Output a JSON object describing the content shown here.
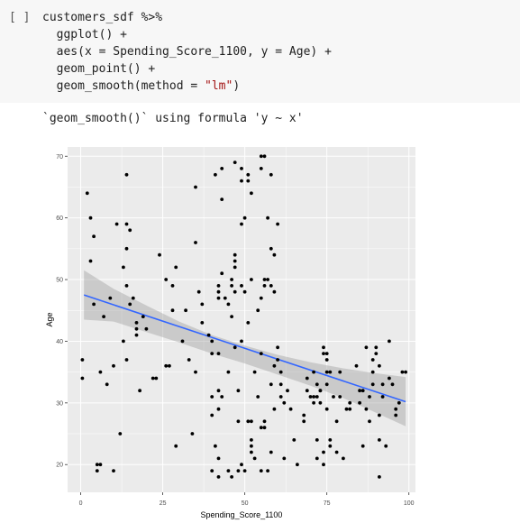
{
  "cell": {
    "run_indicator": "[ ]",
    "code_lines": [
      "customers_sdf %>%",
      "  ggplot() +",
      "  aes(x = Spending_Score_1100, y = Age) +",
      "  geom_point() +"
    ],
    "smooth_prefix": "  geom_smooth(method = ",
    "smooth_string": "\"lm\"",
    "smooth_suffix": ")"
  },
  "output": {
    "message": "`geom_smooth()` using formula 'y ~ x'"
  },
  "chart_data": {
    "type": "scatter",
    "xlabel": "Spending_Score_1100",
    "ylabel": "Age",
    "xlim": [
      -4,
      102
    ],
    "ylim": [
      15.5,
      71.5
    ],
    "xticks": [
      0,
      25,
      50,
      75,
      100
    ],
    "xtick_labels": [
      "0",
      "25",
      "50",
      "75",
      "100"
    ],
    "yticks": [
      20,
      30,
      40,
      50,
      60,
      70
    ],
    "ytick_labels": [
      "20",
      "30",
      "40",
      "50",
      "60",
      "70"
    ],
    "grid": true,
    "colors": {
      "panel": "#ebebeb",
      "grid": "#ffffff",
      "point": "#000000",
      "line": "#3366ff",
      "ribbon": "#999999"
    },
    "regression": {
      "x": [
        1,
        99
      ],
      "y": [
        47.5,
        30.2
      ]
    },
    "ribbon": {
      "x": [
        1,
        10,
        20,
        30,
        40,
        50,
        60,
        70,
        80,
        90,
        99
      ],
      "upper": [
        51.5,
        48.5,
        45.8,
        43.2,
        41.0,
        39.3,
        37.8,
        36.6,
        35.6,
        34.8,
        34.2
      ],
      "lower": [
        43.5,
        43.2,
        41.5,
        39.8,
        38.0,
        36.4,
        34.6,
        32.8,
        30.8,
        28.4,
        26.2
      ]
    },
    "points": [
      [
        0.5,
        37
      ],
      [
        0.5,
        34
      ],
      [
        2,
        64
      ],
      [
        3,
        60
      ],
      [
        3,
        53
      ],
      [
        4,
        46
      ],
      [
        4,
        57
      ],
      [
        5,
        20
      ],
      [
        5,
        19
      ],
      [
        6,
        20
      ],
      [
        6,
        35
      ],
      [
        7,
        44
      ],
      [
        8,
        33
      ],
      [
        9,
        47
      ],
      [
        10,
        19
      ],
      [
        10,
        36
      ],
      [
        11,
        59
      ],
      [
        12,
        25
      ],
      [
        13,
        52
      ],
      [
        13,
        40
      ],
      [
        14,
        55
      ],
      [
        14,
        59
      ],
      [
        14,
        49
      ],
      [
        14,
        37
      ],
      [
        14,
        67
      ],
      [
        15,
        58
      ],
      [
        15,
        46
      ],
      [
        16,
        47
      ],
      [
        17,
        41
      ],
      [
        17,
        43
      ],
      [
        17,
        42
      ],
      [
        18,
        32
      ],
      [
        19,
        44
      ],
      [
        20,
        42
      ],
      [
        22,
        34
      ],
      [
        23,
        34
      ],
      [
        24,
        54
      ],
      [
        26,
        36
      ],
      [
        26,
        50
      ],
      [
        27,
        36
      ],
      [
        28,
        45
      ],
      [
        28,
        49
      ],
      [
        29,
        52
      ],
      [
        29,
        23
      ],
      [
        31,
        40
      ],
      [
        32,
        45
      ],
      [
        33,
        37
      ],
      [
        34,
        25
      ],
      [
        35,
        35
      ],
      [
        35,
        65
      ],
      [
        35,
        56
      ],
      [
        36,
        48
      ],
      [
        37,
        46
      ],
      [
        37,
        43
      ],
      [
        39,
        41
      ],
      [
        40,
        40
      ],
      [
        40,
        38
      ],
      [
        40,
        28
      ],
      [
        40,
        31
      ],
      [
        40,
        19
      ],
      [
        41,
        67
      ],
      [
        41,
        23
      ],
      [
        42,
        29
      ],
      [
        42,
        18
      ],
      [
        42,
        32
      ],
      [
        42,
        49
      ],
      [
        42,
        48
      ],
      [
        42,
        47
      ],
      [
        42,
        38
      ],
      [
        42,
        21
      ],
      [
        43,
        68
      ],
      [
        43,
        63
      ],
      [
        43,
        51
      ],
      [
        43,
        31
      ],
      [
        44,
        47
      ],
      [
        45,
        46
      ],
      [
        45,
        35
      ],
      [
        45,
        19
      ],
      [
        46,
        50
      ],
      [
        46,
        49
      ],
      [
        46,
        44
      ],
      [
        46,
        18
      ],
      [
        47,
        69
      ],
      [
        47,
        54
      ],
      [
        47,
        53
      ],
      [
        47,
        52
      ],
      [
        47,
        48
      ],
      [
        47,
        39
      ],
      [
        48,
        27
      ],
      [
        48,
        32
      ],
      [
        48,
        19
      ],
      [
        49,
        68
      ],
      [
        49,
        66
      ],
      [
        49,
        59
      ],
      [
        49,
        49
      ],
      [
        49,
        40
      ],
      [
        49,
        20
      ],
      [
        50,
        60
      ],
      [
        50,
        48
      ],
      [
        50,
        19
      ],
      [
        51,
        67
      ],
      [
        51,
        66
      ],
      [
        51,
        43
      ],
      [
        51,
        27
      ],
      [
        52,
        64
      ],
      [
        52,
        50
      ],
      [
        52,
        27
      ],
      [
        52,
        24
      ],
      [
        52,
        23
      ],
      [
        52,
        22
      ],
      [
        53,
        35
      ],
      [
        53,
        21
      ],
      [
        54,
        45
      ],
      [
        54,
        31
      ],
      [
        55,
        68
      ],
      [
        55,
        70
      ],
      [
        55,
        47
      ],
      [
        55,
        38
      ],
      [
        55,
        26
      ],
      [
        55,
        19
      ],
      [
        56,
        70
      ],
      [
        56,
        50
      ],
      [
        56,
        49
      ],
      [
        56,
        27
      ],
      [
        56,
        26
      ],
      [
        57,
        50
      ],
      [
        57,
        60
      ],
      [
        57,
        19
      ],
      [
        58,
        67
      ],
      [
        58,
        55
      ],
      [
        58,
        49
      ],
      [
        58,
        33
      ],
      [
        58,
        22
      ],
      [
        59,
        54
      ],
      [
        59,
        48
      ],
      [
        59,
        36
      ],
      [
        59,
        29
      ],
      [
        60,
        59
      ],
      [
        60,
        39
      ],
      [
        60,
        37
      ],
      [
        61,
        35
      ],
      [
        61,
        31
      ],
      [
        61,
        33
      ],
      [
        62,
        30
      ],
      [
        62,
        21
      ],
      [
        63,
        32
      ],
      [
        64,
        29
      ],
      [
        65,
        24
      ],
      [
        66,
        20
      ],
      [
        68,
        28
      ],
      [
        68,
        27
      ],
      [
        69,
        34
      ],
      [
        69,
        32
      ],
      [
        70,
        31
      ],
      [
        71,
        35
      ],
      [
        71,
        31
      ],
      [
        71,
        30
      ],
      [
        72,
        33
      ],
      [
        72,
        31
      ],
      [
        72,
        24
      ],
      [
        72,
        21
      ],
      [
        73,
        32
      ],
      [
        73,
        32
      ],
      [
        73,
        30
      ],
      [
        74,
        38
      ],
      [
        74,
        39
      ],
      [
        74,
        22
      ],
      [
        74,
        20
      ],
      [
        75,
        38
      ],
      [
        75,
        37
      ],
      [
        75,
        35
      ],
      [
        75,
        33
      ],
      [
        75,
        29
      ],
      [
        76,
        35
      ],
      [
        76,
        24
      ],
      [
        76,
        23
      ],
      [
        77,
        31
      ],
      [
        78,
        22
      ],
      [
        78,
        27
      ],
      [
        79,
        35
      ],
      [
        79,
        31
      ],
      [
        80,
        21
      ],
      [
        81,
        29
      ],
      [
        82,
        29
      ],
      [
        82,
        30
      ],
      [
        84,
        36
      ],
      [
        85,
        32
      ],
      [
        85,
        30
      ],
      [
        86,
        32
      ],
      [
        86,
        23
      ],
      [
        87,
        39
      ],
      [
        87,
        29
      ],
      [
        88,
        27
      ],
      [
        88,
        31
      ],
      [
        89,
        37
      ],
      [
        89,
        35
      ],
      [
        89,
        33
      ],
      [
        90,
        39
      ],
      [
        90,
        38
      ],
      [
        91,
        28
      ],
      [
        91,
        18
      ],
      [
        91,
        24
      ],
      [
        91,
        36
      ],
      [
        92,
        33
      ],
      [
        92,
        31
      ],
      [
        93,
        23
      ],
      [
        94,
        40
      ],
      [
        94,
        34
      ],
      [
        95,
        33
      ],
      [
        96,
        29
      ],
      [
        96,
        28
      ],
      [
        97,
        30
      ],
      [
        98,
        35
      ],
      [
        99,
        35
      ]
    ]
  }
}
